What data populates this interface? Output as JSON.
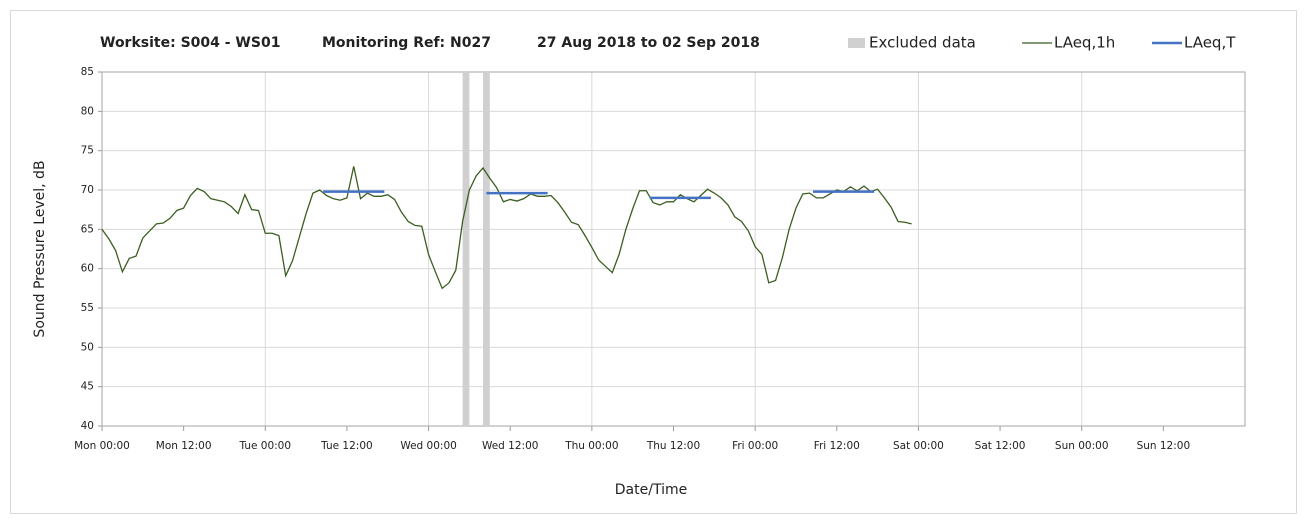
{
  "chart_data": {
    "type": "line",
    "title_parts": [
      "Worksite: S004 - WS01",
      "Monitoring Ref: N027",
      "27 Aug 2018 to 02 Sep 2018"
    ],
    "y_label": "Sound Pressure Level, dB",
    "x_label": "Date/Time",
    "xlim": [
      0,
      168
    ],
    "ylim": [
      40,
      85
    ],
    "yticks": [
      40,
      45,
      50,
      55,
      60,
      65,
      70,
      75,
      80,
      85
    ],
    "xticks": [
      {
        "value": 0,
        "label": "Mon 00:00"
      },
      {
        "value": 12,
        "label": "Mon 12:00"
      },
      {
        "value": 24,
        "label": "Tue 00:00"
      },
      {
        "value": 36,
        "label": "Tue 12:00"
      },
      {
        "value": 48,
        "label": "Wed 00:00"
      },
      {
        "value": 60,
        "label": "Wed 12:00"
      },
      {
        "value": 72,
        "label": "Thu 00:00"
      },
      {
        "value": 84,
        "label": "Thu 12:00"
      },
      {
        "value": 96,
        "label": "Fri 00:00"
      },
      {
        "value": 108,
        "label": "Fri 12:00"
      },
      {
        "value": 120,
        "label": "Sat 00:00"
      },
      {
        "value": 132,
        "label": "Sat 12:00"
      },
      {
        "value": 144,
        "label": "Sun 00:00"
      },
      {
        "value": 156,
        "label": "Sun 12:00"
      }
    ],
    "grid": true,
    "bands": {
      "name": "Excluded data",
      "color": "#d0d0d0",
      "ranges": [
        [
          53,
          54
        ],
        [
          56,
          57
        ]
      ]
    },
    "series": [
      {
        "name": "LAeq,1h",
        "color": "#3b5e21",
        "x": [
          0,
          1,
          2,
          3,
          4,
          5,
          6,
          7,
          8,
          9,
          10,
          11,
          12,
          13,
          14,
          15,
          16,
          17,
          18,
          19,
          20,
          21,
          22,
          23,
          24,
          25,
          26,
          27,
          28,
          29,
          30,
          31,
          32,
          33,
          34,
          35,
          36,
          37,
          38,
          39,
          40,
          41,
          42,
          43,
          44,
          45,
          46,
          47,
          48,
          49,
          50,
          51,
          52,
          53,
          54,
          55,
          56,
          57,
          58,
          59,
          60,
          61,
          62,
          63,
          64,
          65,
          66,
          67,
          68,
          69,
          70,
          71,
          72,
          73,
          74,
          75,
          76,
          77,
          78,
          79,
          80,
          81,
          82,
          83,
          84,
          85,
          86,
          87,
          88,
          89,
          90,
          91,
          92,
          93,
          94,
          95,
          96,
          97,
          98,
          99,
          100,
          101,
          102,
          103,
          104,
          105,
          106,
          107,
          108,
          109,
          110,
          111,
          112,
          113,
          114,
          115,
          116,
          117,
          118,
          119
        ],
        "values": [
          65.0,
          63.8,
          62.3,
          59.6,
          61.3,
          61.6,
          63.9,
          64.8,
          65.7,
          65.8,
          66.4,
          67.4,
          67.7,
          69.3,
          70.2,
          69.8,
          68.9,
          68.7,
          68.5,
          67.9,
          67.0,
          69.4,
          67.5,
          67.4,
          64.5,
          64.5,
          64.2,
          59.1,
          61.0,
          64.0,
          67.0,
          69.6,
          70.0,
          69.3,
          68.9,
          68.7,
          69.0,
          73.0,
          68.9,
          69.6,
          69.2,
          69.2,
          69.4,
          68.8,
          67.2,
          66.0,
          65.5,
          65.4,
          61.8,
          59.6,
          57.5,
          58.2,
          59.8,
          66.0,
          70.0,
          71.8,
          72.8,
          71.5,
          70.3,
          68.5,
          68.8,
          68.6,
          68.9,
          69.5,
          69.2,
          69.2,
          69.3,
          68.4,
          67.2,
          65.9,
          65.6,
          64.2,
          62.7,
          61.1,
          60.3,
          59.5,
          61.8,
          65.0,
          67.6,
          69.9,
          69.9,
          68.4,
          68.1,
          68.5,
          68.5,
          69.4,
          68.9,
          68.5,
          69.3,
          70.1,
          69.6,
          69.0,
          68.1,
          66.6,
          66.0,
          64.8,
          62.8,
          61.8,
          58.2,
          58.5,
          61.4,
          65.0,
          67.7,
          69.5,
          69.6,
          69.0,
          69.0,
          69.5,
          70.0,
          69.8,
          70.4,
          69.9,
          70.5,
          69.8,
          70.1,
          69.0,
          67.8,
          66.0,
          65.9,
          65.7
        ]
      },
      {
        "name": "LAeq,T",
        "color": "#4472c4",
        "x": [
          32.5,
          41.5,
          49,
          56.5,
          65.5,
          73,
          80.5,
          89.5,
          97,
          104.5,
          113.5
        ],
        "values": [
          69.8,
          69.8,
          null,
          69.6,
          69.6,
          null,
          69.0,
          69.0,
          null,
          69.8,
          69.8
        ]
      }
    ]
  }
}
